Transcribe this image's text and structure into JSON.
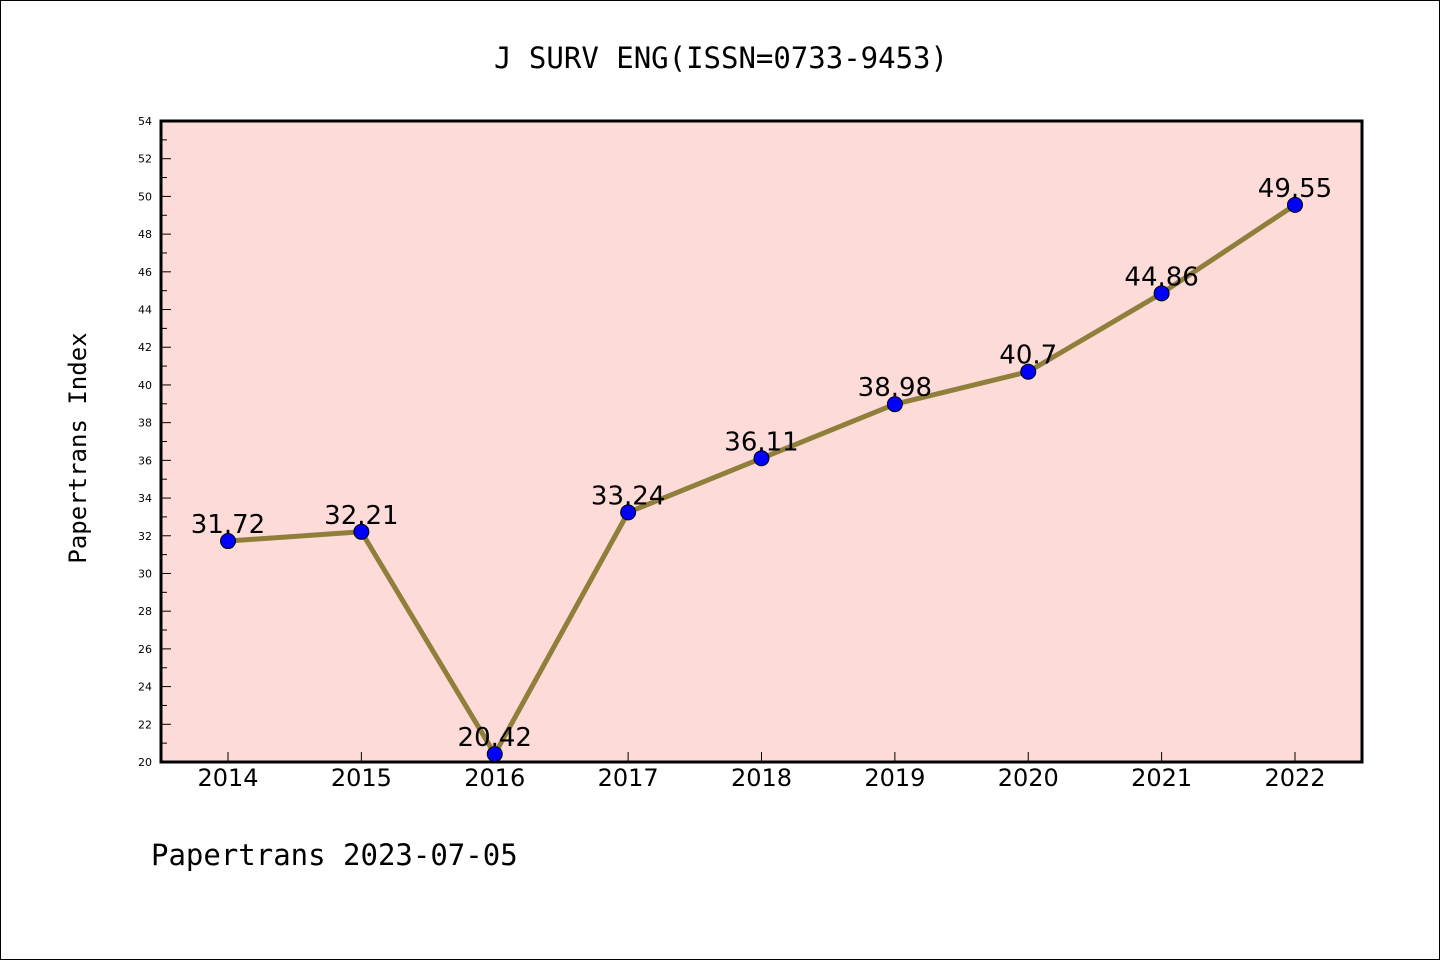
{
  "chart_data": {
    "type": "line",
    "title": "J SURV ENG(ISSN=0733-9453)",
    "ylabel": "Papertrans Index",
    "xlabel": "",
    "footer": "Papertrans 2023-07-05",
    "categories": [
      "2014",
      "2015",
      "2016",
      "2017",
      "2018",
      "2019",
      "2020",
      "2021",
      "2022"
    ],
    "values": [
      31.72,
      32.21,
      20.42,
      33.24,
      36.11,
      38.98,
      40.7,
      44.86,
      49.55
    ],
    "data_labels": [
      "31.72",
      "32.21",
      "20.42",
      "33.24",
      "36.11",
      "38.98",
      "40.7",
      "44.86",
      "49.55"
    ],
    "ylim": [
      20,
      54
    ],
    "yticks": [
      "20",
      "22",
      "24",
      "26",
      "28",
      "30",
      "32",
      "34",
      "36",
      "38",
      "40",
      "42",
      "44",
      "46",
      "48",
      "50",
      "52",
      "54"
    ],
    "grid": false,
    "colors": {
      "plot_background": "#fddbd8",
      "line": "#8f7f3b",
      "marker": "#0000ff"
    }
  }
}
